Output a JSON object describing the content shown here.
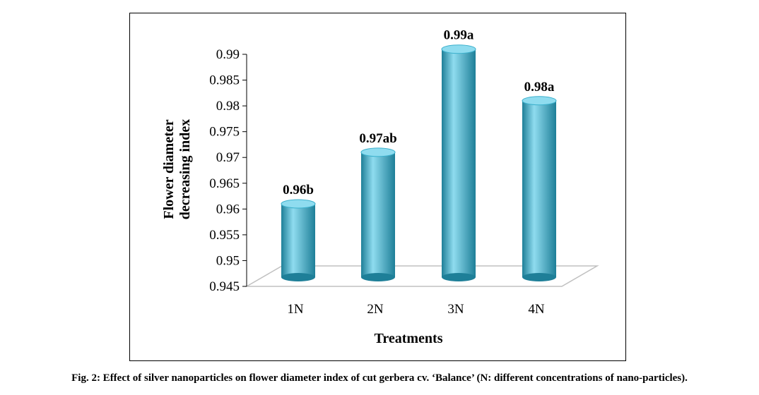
{
  "caption": "Fig. 2: Effect of silver nanoparticles on flower diameter index of cut gerbera cv. ‘Balance’ (N: different concentrations of nano-particles).",
  "colors": {
    "bar": "#3bb0cc",
    "bar_dark": "#1e7f98",
    "bar_light": "#8fdcef",
    "floor": "#c0c0c0"
  },
  "chart_data": {
    "type": "bar",
    "categories": [
      "1N",
      "2N",
      "3N",
      "4N"
    ],
    "values": [
      0.961,
      0.971,
      0.991,
      0.981
    ],
    "data_labels": [
      "0.96b",
      "0.97ab",
      "0.99a",
      "0.98a"
    ],
    "xlabel": "Treatments",
    "ylabel_lines": [
      "Flower diameter",
      "decreasing index"
    ],
    "ylim": [
      0.945,
      0.99
    ],
    "yticks": [
      0.945,
      0.95,
      0.955,
      0.96,
      0.965,
      0.97,
      0.975,
      0.98,
      0.985,
      0.99
    ],
    "ytick_labels": [
      "0.945",
      "0.95",
      "0.955",
      "0.96",
      "0.965",
      "0.97",
      "0.975",
      "0.98",
      "0.985",
      "0.99"
    ],
    "style": "3d-cylinder",
    "grid": false,
    "legend": "none"
  }
}
